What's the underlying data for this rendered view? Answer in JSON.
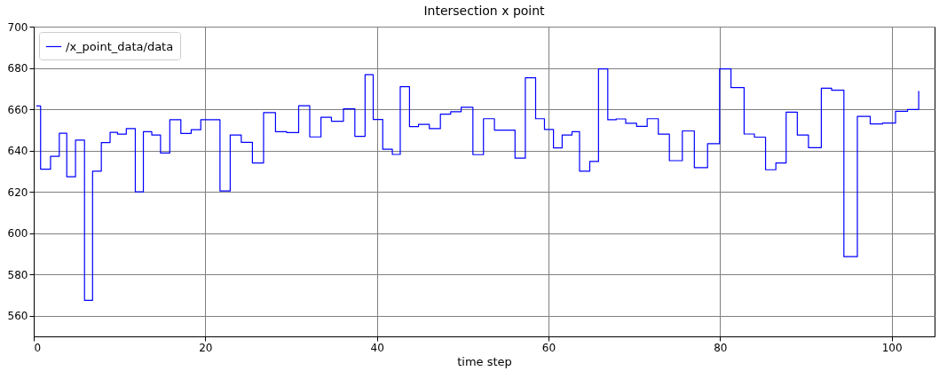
{
  "chart_data": {
    "type": "step",
    "title": "Intersection x point",
    "xlabel": "time step",
    "xlim": [
      0,
      105
    ],
    "ylim": [
      550,
      700
    ],
    "xticks": [
      0,
      20,
      40,
      60,
      80,
      100
    ],
    "yticks": [
      560,
      580,
      600,
      620,
      640,
      660,
      680,
      700
    ],
    "grid": true,
    "legend": "top left",
    "series": [
      {
        "name": "/x_point_data/data",
        "color": "#0000ff",
        "x": [
          0.3,
          0.8,
          1.96,
          2.98,
          3.85,
          4.87,
          5.92,
          6.86,
          7.88,
          8.9,
          9.77,
          10.79,
          11.84,
          12.78,
          13.76,
          14.78,
          15.86,
          17.15,
          18.35,
          19.47,
          21.71,
          22.9,
          24.19,
          25.49,
          26.79,
          28.18,
          29.48,
          30.88,
          32.17,
          33.48,
          34.7,
          36.1,
          37.43,
          38.62,
          39.57,
          40.68,
          41.8,
          42.72,
          43.8,
          44.85,
          46.11,
          47.4,
          48.6,
          49.82,
          51.19,
          52.42,
          53.7,
          56.1,
          57.3,
          58.5,
          59.53,
          60.58,
          61.59,
          62.74,
          63.62,
          64.81,
          65.83,
          66.91,
          67.89,
          69.0,
          70.27,
          71.5,
          72.8,
          74.09,
          75.6,
          77.0,
          78.54,
          79.94,
          81.27,
          82.8,
          84.0,
          85.3,
          86.5,
          87.7,
          89.0,
          90.3,
          91.8,
          93.0,
          94.43,
          96.0,
          97.5,
          98.95,
          100.45,
          101.85,
          103.15
        ],
        "values": [
          661.6,
          631,
          637.2,
          648.4,
          627.3,
          645,
          567.5,
          630,
          643.9,
          648.8,
          647.9,
          650.6,
          620,
          649.1,
          647.5,
          638.8,
          654.9,
          648.3,
          650.1,
          654.9,
          620.4,
          647.5,
          644,
          634,
          658.4,
          649.1,
          648.7,
          661.7,
          646.6,
          656.1,
          654.2,
          660.2,
          646.9,
          676.7,
          655,
          640.6,
          638.1,
          670.9,
          651.6,
          652.7,
          650.6,
          657.6,
          658.8,
          660.9,
          638,
          655.4,
          649.9,
          636.3,
          675.2,
          655.4,
          650.2,
          641.3,
          647.5,
          649.1,
          630,
          634.7,
          679.5,
          654.9,
          655.3,
          653.2,
          651.7,
          655.4,
          647.9,
          635.1,
          649.5,
          631.7,
          643.3,
          679.5,
          670.5,
          648,
          646.5,
          630.7,
          634,
          658.6,
          647.5,
          641.4,
          670.2,
          669.2,
          588.6,
          656.5,
          652.9,
          653.3,
          659,
          659.9,
          668.8
        ]
      }
    ]
  }
}
